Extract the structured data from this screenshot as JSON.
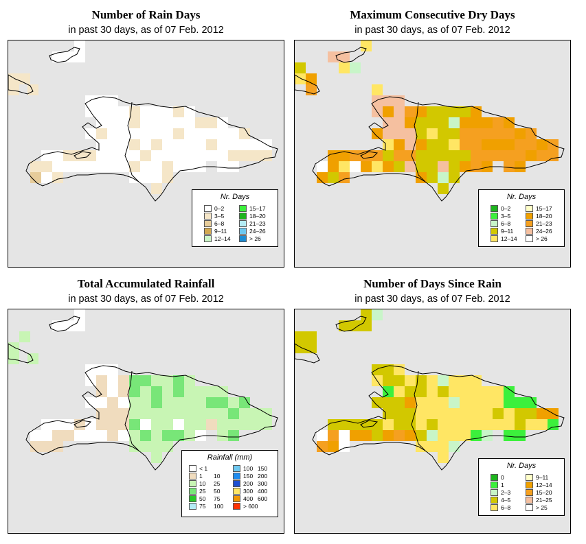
{
  "panels": [
    {
      "title": "Number of Rain Days",
      "subtitle": "in past 30 days, as of  07 Feb. 2012",
      "legend": {
        "title": "Nr. Days",
        "items": [
          {
            "label": "0–2",
            "color": "#ffffff"
          },
          {
            "label": "3–5",
            "color": "#f5e6c8"
          },
          {
            "label": "6–8",
            "color": "#e6cc9a"
          },
          {
            "label": "9–11",
            "color": "#d2a850"
          },
          {
            "label": "12–14",
            "color": "#ccf5c8"
          },
          {
            "label": "15–17",
            "color": "#3cf03c"
          },
          {
            "label": "18–20",
            "color": "#1eb41e"
          },
          {
            "label": "21–23",
            "color": "#b4ecf5"
          },
          {
            "label": "24–26",
            "color": "#6ec8f0"
          },
          {
            "label": "> 26",
            "color": "#1e8cd2"
          }
        ]
      }
    },
    {
      "title": "Maximum Consecutive Dry Days",
      "subtitle": "in past 30 days, as of  07 Feb. 2012",
      "legend": {
        "title": "Nr. Days",
        "items": [
          {
            "label": "0–2",
            "color": "#1eb41e"
          },
          {
            "label": "3–5",
            "color": "#3cf03c"
          },
          {
            "label": "6–8",
            "color": "#c8f5c8"
          },
          {
            "label": "9–11",
            "color": "#d2c800"
          },
          {
            "label": "12–14",
            "color": "#ffe664"
          },
          {
            "label": "15–17",
            "color": "#ffffc8"
          },
          {
            "label": "18–20",
            "color": "#f0a000"
          },
          {
            "label": "21–23",
            "color": "#f5a020"
          },
          {
            "label": "24–26",
            "color": "#f5c0a0"
          },
          {
            "label": "> 26",
            "color": "#ffffff"
          }
        ]
      }
    },
    {
      "title": "Total Accumulated Rainfall",
      "subtitle": "in past 30 days, as of  07 Feb. 2012",
      "legend": {
        "title": "Rainfall (mm)",
        "items": [
          {
            "lo": "< 1",
            "hi": "",
            "color": "#ffffff"
          },
          {
            "lo": "1",
            "hi": "10",
            "color": "#f0dcbe"
          },
          {
            "lo": "10",
            "hi": "25",
            "color": "#c8f5b4"
          },
          {
            "lo": "25",
            "hi": "50",
            "color": "#78e678"
          },
          {
            "lo": "50",
            "hi": "75",
            "color": "#28c828"
          },
          {
            "lo": "75",
            "hi": "100",
            "color": "#b4ecf5"
          },
          {
            "lo": "100",
            "hi": "150",
            "color": "#6ec8f0"
          },
          {
            "lo": "150",
            "hi": "200",
            "color": "#1e8cf0"
          },
          {
            "lo": "200",
            "hi": "300",
            "color": "#1e50d2"
          },
          {
            "lo": "300",
            "hi": "400",
            "color": "#ffe664"
          },
          {
            "lo": "400",
            "hi": "600",
            "color": "#f09600"
          },
          {
            "lo": "> 600",
            "hi": "",
            "color": "#ff3200"
          }
        ]
      }
    },
    {
      "title": "Number of Days Since Rain",
      "subtitle": "in past 30 days, as of  07 Feb. 2012",
      "legend": {
        "title": "Nr. Days",
        "items": [
          {
            "label": "0",
            "color": "#1eb41e"
          },
          {
            "label": "1",
            "color": "#3cf03c"
          },
          {
            "label": "2–3",
            "color": "#c8f5c8"
          },
          {
            "label": "4–5",
            "color": "#d2c800"
          },
          {
            "label": "6–8",
            "color": "#ffe664"
          },
          {
            "label": "9–11",
            "color": "#ffffc8"
          },
          {
            "label": "12–14",
            "color": "#f0a000"
          },
          {
            "label": "15–20",
            "color": "#f5a020"
          },
          {
            "label": "21–25",
            "color": "#f5c0a0"
          },
          {
            "label": "> 25",
            "color": "#ffffff"
          }
        ]
      }
    }
  ]
}
